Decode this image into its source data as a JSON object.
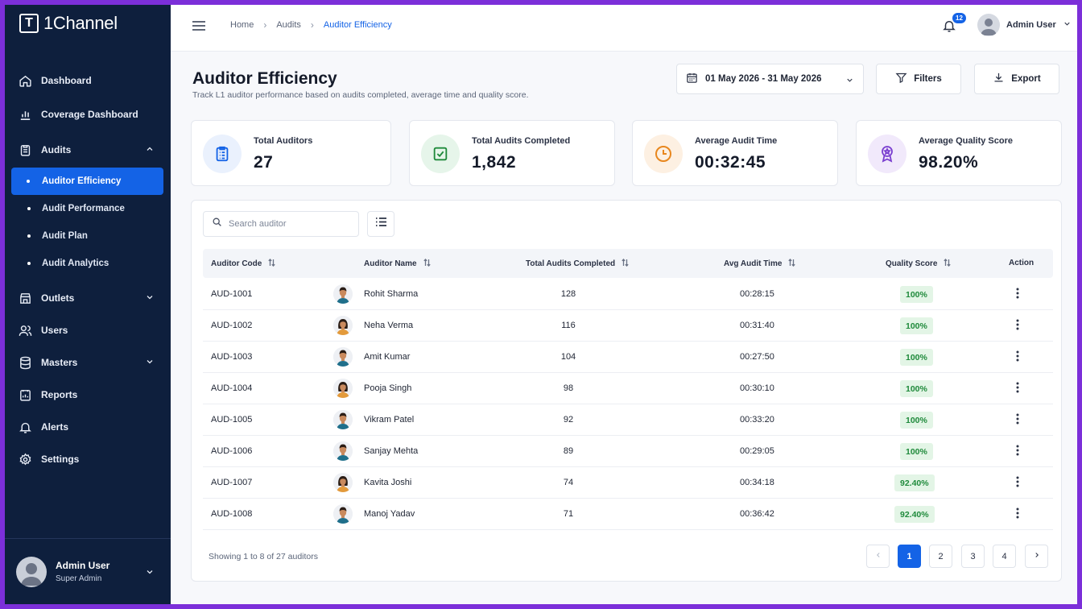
{
  "app": {
    "brand_mark": "T",
    "brand_name": "1Channel"
  },
  "sidebar": {
    "items": [
      {
        "label": "Dashboard",
        "icon": "home-icon"
      },
      {
        "label": "Coverage Dashboard",
        "icon": "bar-chart-icon"
      },
      {
        "label": "Audits",
        "icon": "clipboard-icon",
        "expanded": true
      },
      {
        "label": "Outlets",
        "icon": "store-icon"
      },
      {
        "label": "Users",
        "icon": "users-icon"
      },
      {
        "label": "Masters",
        "icon": "database-icon"
      },
      {
        "label": "Reports",
        "icon": "report-icon"
      },
      {
        "label": "Alerts",
        "icon": "bell-icon"
      },
      {
        "label": "Settings",
        "icon": "gear-icon"
      }
    ],
    "audit_sub": [
      "Auditor Efficiency",
      "Audit Performance",
      "Audit Plan",
      "Audit Analytics"
    ],
    "active_sub": "Auditor Efficiency",
    "user": {
      "name": "Admin User",
      "role": "Super Admin"
    }
  },
  "topbar": {
    "breadcrumb": [
      "Home",
      "Audits",
      "Auditor Efficiency"
    ],
    "notification_count": "12",
    "user_name": "Admin User"
  },
  "page": {
    "title": "Auditor Efficiency",
    "subtitle": "Track L1 auditor performance based on audits completed, average time and quality score.",
    "date_range": "01 May 2026 - 31 May 2026",
    "filters_label": "Filters",
    "export_label": "Export"
  },
  "kpis": [
    {
      "label": "Total Auditors",
      "value": "27",
      "icon": "clipboard-list-icon",
      "color": "#1463e6",
      "bg": "#eaf1fd"
    },
    {
      "label": "Total Audits Completed",
      "value": "1,842",
      "icon": "check-square-icon",
      "color": "#1f8a3b",
      "bg": "#e6f5ea"
    },
    {
      "label": "Average Audit Time",
      "value": "00:32:45",
      "icon": "clock-icon",
      "color": "#e8871e",
      "bg": "#fdf0e2"
    },
    {
      "label": "Average Quality Score",
      "value": "98.20%",
      "icon": "award-icon",
      "color": "#7a3fd0",
      "bg": "#f1e9fb"
    }
  ],
  "table": {
    "search_placeholder": "Search auditor",
    "columns": [
      "Auditor Code",
      "Auditor Name",
      "Total Audits Completed",
      "Avg Audit Time",
      "Quality Score",
      "Action"
    ],
    "rows": [
      {
        "code": "AUD-1001",
        "name": "Rohit Sharma",
        "audits": "128",
        "time": "00:28:15",
        "score": "100%",
        "gender": "m"
      },
      {
        "code": "AUD-1002",
        "name": "Neha Verma",
        "audits": "116",
        "time": "00:31:40",
        "score": "100%",
        "gender": "f"
      },
      {
        "code": "AUD-1003",
        "name": "Amit Kumar",
        "audits": "104",
        "time": "00:27:50",
        "score": "100%",
        "gender": "m"
      },
      {
        "code": "AUD-1004",
        "name": "Pooja Singh",
        "audits": "98",
        "time": "00:30:10",
        "score": "100%",
        "gender": "f"
      },
      {
        "code": "AUD-1005",
        "name": "Vikram Patel",
        "audits": "92",
        "time": "00:33:20",
        "score": "100%",
        "gender": "m"
      },
      {
        "code": "AUD-1006",
        "name": "Sanjay Mehta",
        "audits": "89",
        "time": "00:29:05",
        "score": "100%",
        "gender": "m"
      },
      {
        "code": "AUD-1007",
        "name": "Kavita Joshi",
        "audits": "74",
        "time": "00:34:18",
        "score": "92.40%",
        "gender": "f"
      },
      {
        "code": "AUD-1008",
        "name": "Manoj Yadav",
        "audits": "71",
        "time": "00:36:42",
        "score": "92.40%",
        "gender": "m"
      }
    ],
    "footer": "Showing 1 to 8 of 27 auditors",
    "pages": [
      "1",
      "2",
      "3",
      "4"
    ],
    "current_page": "1"
  }
}
